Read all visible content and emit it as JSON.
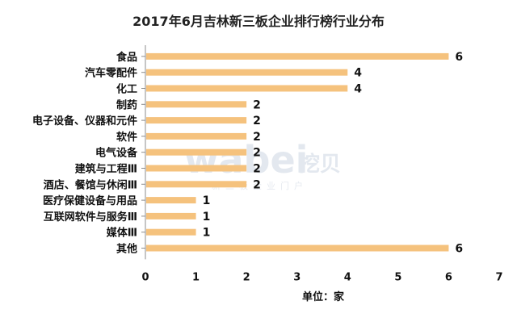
{
  "watermark": {
    "brand": "wabei",
    "brand_cn": "挖贝",
    "subtitle": "新三板企业门户"
  },
  "chart_data": {
    "type": "bar",
    "orientation": "horizontal",
    "title": "2017年6月吉林新三板企业排行榜行业分布",
    "xlabel": "单位：家",
    "ylabel": "",
    "xlim": [
      0,
      7
    ],
    "x_ticks": [
      0,
      1,
      2,
      3,
      4,
      5,
      6,
      7
    ],
    "grid": false,
    "bar_color": "#f5c27d",
    "categories": [
      "食品",
      "汽车零配件",
      "化工",
      "制药",
      "电子设备、仪器和元件",
      "软件",
      "电气设备",
      "建筑与工程Ⅲ",
      "酒店、餐馆与休闲Ⅲ",
      "医疗保健设备与用品",
      "互联网软件与服务Ⅲ",
      "媒体Ⅲ",
      "其他"
    ],
    "values": [
      6,
      4,
      4,
      2,
      2,
      2,
      2,
      2,
      2,
      1,
      1,
      1,
      6
    ]
  }
}
